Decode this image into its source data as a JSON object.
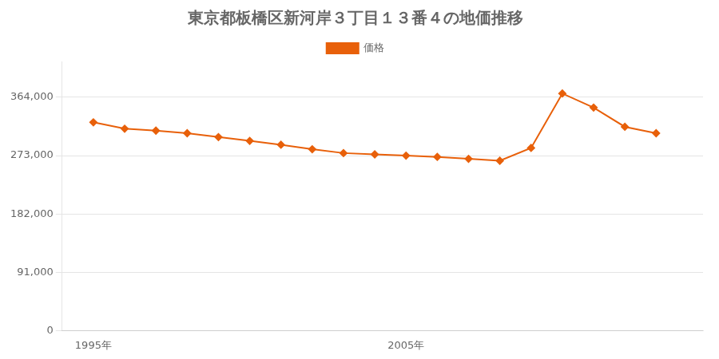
{
  "chart_data": {
    "type": "line",
    "title": "東京都板橋区新河岸３丁目１３番４の地価推移",
    "x": [
      1995,
      1996,
      1997,
      1998,
      1999,
      2000,
      2001,
      2002,
      2003,
      2004,
      2005,
      2006,
      2007,
      2008,
      2009,
      2010,
      2011,
      2012,
      2013
    ],
    "series": [
      {
        "name": "価格",
        "color": "#e8600a",
        "marker": "diamond",
        "values": [
          325000,
          315000,
          312000,
          308000,
          302000,
          296000,
          290000,
          283000,
          277000,
          275000,
          273000,
          271000,
          268000,
          265000,
          285000,
          370000,
          348000,
          318000,
          308000
        ]
      }
    ],
    "xlim": [
      1994,
      2014.5
    ],
    "xticks": [
      {
        "value": 1995,
        "label": "1995年"
      },
      {
        "value": 2005,
        "label": "2005年"
      }
    ],
    "ylim": [
      0,
      420000
    ],
    "yticks": [
      0,
      {
        "value": 91000,
        "label": "91,000"
      },
      {
        "value": 182000,
        "label": "182,000"
      },
      {
        "value": 273000,
        "label": "273,000"
      },
      {
        "value": 364000,
        "label": "364,000"
      }
    ],
    "grid": "y",
    "legend": "top"
  }
}
